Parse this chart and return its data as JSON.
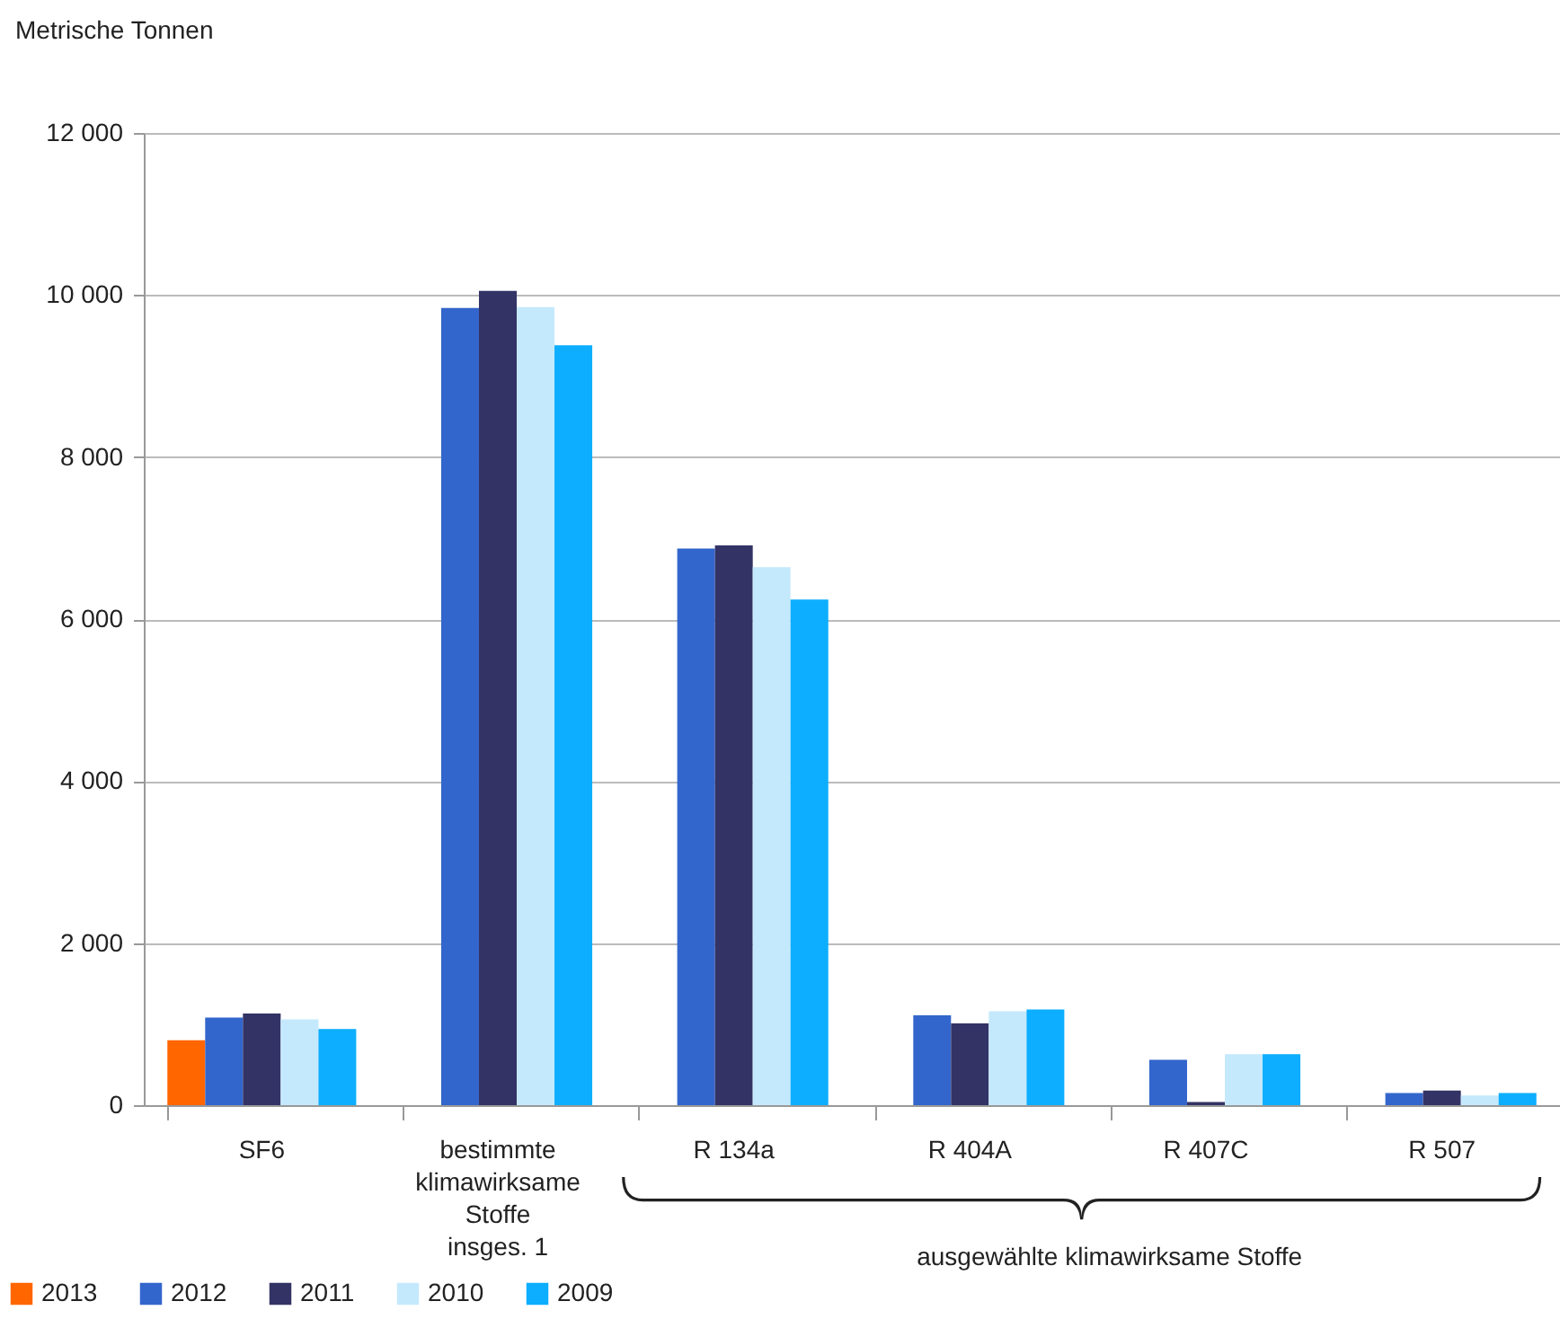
{
  "chart_data": {
    "type": "bar",
    "ylabel": "Metrische Tonnen",
    "categories": [
      "SF6",
      "bestimmte klimawirksame Stoffe insges. 1",
      "R 134a",
      "R 404A",
      "R 407C",
      "R 507"
    ],
    "series": [
      {
        "name": "2013",
        "color": "#ff6600",
        "values": [
          800,
          null,
          null,
          null,
          null,
          null
        ]
      },
      {
        "name": "2012",
        "color": "#3366cc",
        "values": [
          1080,
          9840,
          6870,
          1110,
          560,
          150
        ]
      },
      {
        "name": "2011",
        "color": "#333366",
        "values": [
          1130,
          10050,
          6910,
          1010,
          40,
          180
        ]
      },
      {
        "name": "2010",
        "color": "#c5e9fc",
        "values": [
          1060,
          9850,
          6640,
          1160,
          630,
          120
        ]
      },
      {
        "name": "2009",
        "color": "#0daeff",
        "values": [
          940,
          9380,
          6240,
          1180,
          630,
          150
        ]
      }
    ],
    "ylim": [
      0,
      12000
    ],
    "yticks": [
      0,
      {
        "value": 2000,
        "label": "2 000"
      },
      {
        "value": 4000,
        "label": "4 000"
      },
      {
        "value": 6000,
        "label": "6 000"
      },
      {
        "value": 8000,
        "label": "8 000"
      },
      {
        "value": 10000,
        "label": "10 000"
      },
      {
        "value": 12000,
        "label": "12 000"
      }
    ],
    "grid": "y",
    "legend": "bottom left",
    "annotations": [
      "ausgewählte klimawirksame Stoffe"
    ]
  }
}
